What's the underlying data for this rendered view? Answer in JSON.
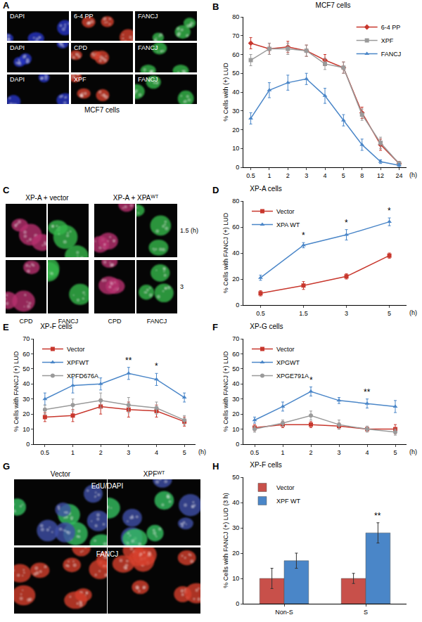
{
  "chart_data": [
    {
      "panel": "B",
      "type": "line",
      "title": "MCF7 cells",
      "y_label": "% Cells with (+) LUD",
      "x_label": "(h)",
      "categories": [
        "0.5",
        "1",
        "2",
        "3",
        "4",
        "5",
        "8",
        "12",
        "24"
      ],
      "series": [
        {
          "name": "6-4 PP",
          "color": "#c8372d",
          "marker": "diamond",
          "values": [
            66,
            63,
            64,
            62,
            57,
            53,
            29,
            12,
            2
          ],
          "errors": [
            3,
            3,
            3,
            3,
            3,
            3,
            3,
            3,
            1
          ]
        },
        {
          "name": "XPF",
          "color": "#9a9a9a",
          "marker": "square",
          "values": [
            57,
            63,
            63,
            62,
            55,
            53,
            28,
            13,
            2
          ],
          "errors": [
            3,
            3,
            3,
            3,
            3,
            3,
            3,
            3,
            1
          ]
        },
        {
          "name": "FANCJ",
          "color": "#4a86c8",
          "marker": "triangle-up",
          "values": [
            26,
            41,
            45,
            47,
            38,
            25,
            12,
            3,
            1
          ],
          "errors": [
            3,
            4,
            4,
            3,
            4,
            3,
            3,
            1,
            1
          ]
        }
      ],
      "ylim": [
        0,
        80
      ],
      "yticks": [
        0,
        10,
        20,
        30,
        40,
        50,
        60,
        70,
        80
      ],
      "grid": false,
      "legend": "upper right"
    },
    {
      "panel": "D",
      "type": "line",
      "title": "XP-A cells",
      "y_label": "% Cells with FANCJ (+) LUD",
      "x_label": "(h)",
      "categories": [
        "0.5",
        "1.5",
        "3",
        "5"
      ],
      "series": [
        {
          "name": "Vector",
          "color": "#c8372d",
          "marker": "square",
          "values": [
            9,
            15,
            22,
            38
          ],
          "errors": [
            2,
            3,
            2,
            2
          ]
        },
        {
          "name": "XPA WT",
          "color": "#4a86c8",
          "marker": "triangle-up",
          "values": [
            21,
            46,
            54,
            64
          ],
          "errors": [
            2,
            2,
            4,
            3
          ]
        }
      ],
      "annotations": [
        {
          "x": "1.5",
          "text": "*"
        },
        {
          "x": "3",
          "text": "*"
        },
        {
          "x": "5",
          "text": "*"
        }
      ],
      "ylim": [
        0,
        80
      ],
      "yticks": [
        0,
        20,
        40,
        60,
        80
      ],
      "grid": false,
      "legend": "upper left"
    },
    {
      "panel": "E",
      "type": "line",
      "title": "XP-F cells",
      "y_label": "% Cells with FANCJ (+) LUD",
      "x_label": "(h)",
      "categories": [
        "0.5",
        "1",
        "2",
        "3",
        "4",
        "5"
      ],
      "series": [
        {
          "name": "Vector",
          "color": "#c8372d",
          "marker": "square",
          "values": [
            18,
            19,
            25,
            23,
            22,
            15
          ],
          "errors": [
            3,
            4,
            5,
            5,
            4,
            3
          ]
        },
        {
          "name": "XPFWT",
          "color": "#4a86c8",
          "marker": "triangle-up",
          "values": [
            30,
            39,
            40,
            47,
            43,
            31
          ],
          "errors": [
            4,
            5,
            4,
            4,
            4,
            3
          ]
        },
        {
          "name": "XPFD676A",
          "color": "#9a9a9a",
          "marker": "circle",
          "values": [
            23,
            26,
            29,
            26,
            24,
            16
          ],
          "errors": [
            3,
            4,
            5,
            5,
            4,
            3
          ]
        }
      ],
      "annotations": [
        {
          "x": "3",
          "text": "**"
        },
        {
          "x": "4",
          "text": "*"
        }
      ],
      "ylim": [
        0,
        70
      ],
      "yticks": [
        0,
        10,
        20,
        30,
        40,
        50,
        60,
        70
      ],
      "grid": false,
      "legend": "upper left"
    },
    {
      "panel": "F",
      "type": "line",
      "title": "XP-G cells",
      "y_label": "% Cells with FANCJ (+) LUD",
      "x_label": "(h)",
      "categories": [
        "0.5",
        "1",
        "2",
        "3",
        "4",
        "5"
      ],
      "series": [
        {
          "name": "Vector",
          "color": "#c8372d",
          "marker": "square",
          "values": [
            11,
            13,
            13,
            12,
            10,
            10
          ],
          "errors": [
            2,
            2,
            2,
            2,
            1,
            3
          ]
        },
        {
          "name": "XPGWT",
          "color": "#4a86c8",
          "marker": "triangle-up",
          "values": [
            16,
            25,
            35,
            29,
            27,
            25
          ],
          "errors": [
            2,
            3,
            3,
            2,
            3,
            4
          ]
        },
        {
          "name": "XPGE791A",
          "color": "#9a9a9a",
          "marker": "circle",
          "values": [
            10,
            14,
            19,
            13,
            10,
            8
          ],
          "errors": [
            2,
            2,
            3,
            3,
            2,
            2
          ]
        }
      ],
      "annotations": [
        {
          "x": "2",
          "text": "*"
        },
        {
          "x": "4",
          "text": "**"
        }
      ],
      "ylim": [
        0,
        70
      ],
      "yticks": [
        0,
        10,
        20,
        30,
        40,
        50,
        60,
        70
      ],
      "grid": false,
      "legend": "upper left"
    },
    {
      "panel": "H",
      "type": "bar",
      "title": "XP-F cells",
      "y_label": "% Cells with FANCJ (+) LUD (3 h)",
      "categories": [
        "Non-S",
        "S"
      ],
      "series": [
        {
          "name": "Vector",
          "color": "#c8504a",
          "values": [
            10,
            10
          ],
          "errors": [
            4,
            2
          ]
        },
        {
          "name": "XPF WT",
          "color": "#4a86c8",
          "values": [
            17,
            28
          ],
          "errors": [
            3,
            4
          ]
        }
      ],
      "annotations": [
        {
          "x": "S",
          "series": "XPF WT",
          "text": "**"
        }
      ],
      "ylim": [
        0,
        50
      ],
      "yticks": [
        0,
        10,
        20,
        30,
        40,
        50
      ],
      "grid": false,
      "legend": "upper left"
    }
  ],
  "image_panels": [
    {
      "panel": "A",
      "caption": "MCF7 cells",
      "rows": [
        {
          "images": [
            {
              "label": "DAPI",
              "colors": [
                "#2636c4"
              ]
            },
            {
              "label": "6-4 PP",
              "colors": [
                "#d4402a"
              ]
            },
            {
              "label": "FANCJ",
              "colors": [
                "#35b84a"
              ]
            }
          ]
        },
        {
          "images": [
            {
              "label": "DAPI",
              "colors": [
                "#2636c4"
              ]
            },
            {
              "label": "CPD",
              "colors": [
                "#d4402a"
              ]
            },
            {
              "label": "FANCJ",
              "colors": [
                "#35b84a"
              ]
            }
          ]
        },
        {
          "images": [
            {
              "label": "DAPI",
              "colors": [
                "#2636c4"
              ]
            },
            {
              "label": "XPF",
              "colors": [
                "#d4402a"
              ]
            },
            {
              "label": "FANCJ",
              "colors": [
                "#35b84a"
              ]
            }
          ]
        }
      ]
    },
    {
      "panel": "C",
      "column_headers": [
        {
          "text": "XP-A + vector"
        },
        {
          "text": "XP-A + XPA",
          "sup": "WT"
        }
      ],
      "rows": [
        {
          "label": "1.5 (h)",
          "images": [
            {
              "colors": [
                "#b8306e"
              ]
            },
            {
              "colors": [
                "#35b84a"
              ]
            },
            {
              "colors": [
                "#b8306e"
              ]
            },
            {
              "colors": [
                "#35b84a"
              ]
            }
          ]
        },
        {
          "label": "3",
          "images": [
            {
              "colors": [
                "#b8306e"
              ]
            },
            {
              "colors": [
                "#35b84a"
              ]
            },
            {
              "colors": [
                "#b8306e"
              ]
            },
            {
              "colors": [
                "#35b84a"
              ]
            }
          ]
        }
      ],
      "bottom_labels": [
        "CPD",
        "FANCJ",
        "CPD",
        "FANCJ"
      ]
    },
    {
      "panel": "G",
      "column_headers": [
        {
          "text": "Vector"
        },
        {
          "text": "XPF",
          "sup": "WT"
        }
      ],
      "rows": [
        {
          "label": "EdU/DAPI",
          "images": [
            {
              "colors": [
                "#4050a8",
                "#35c060"
              ]
            },
            {
              "colors": [
                "#4050a8",
                "#35c060"
              ]
            }
          ]
        },
        {
          "label": "FANCJ",
          "images": [
            {
              "colors": [
                "#d4402a"
              ]
            },
            {
              "colors": [
                "#d4402a"
              ]
            }
          ]
        }
      ]
    }
  ]
}
